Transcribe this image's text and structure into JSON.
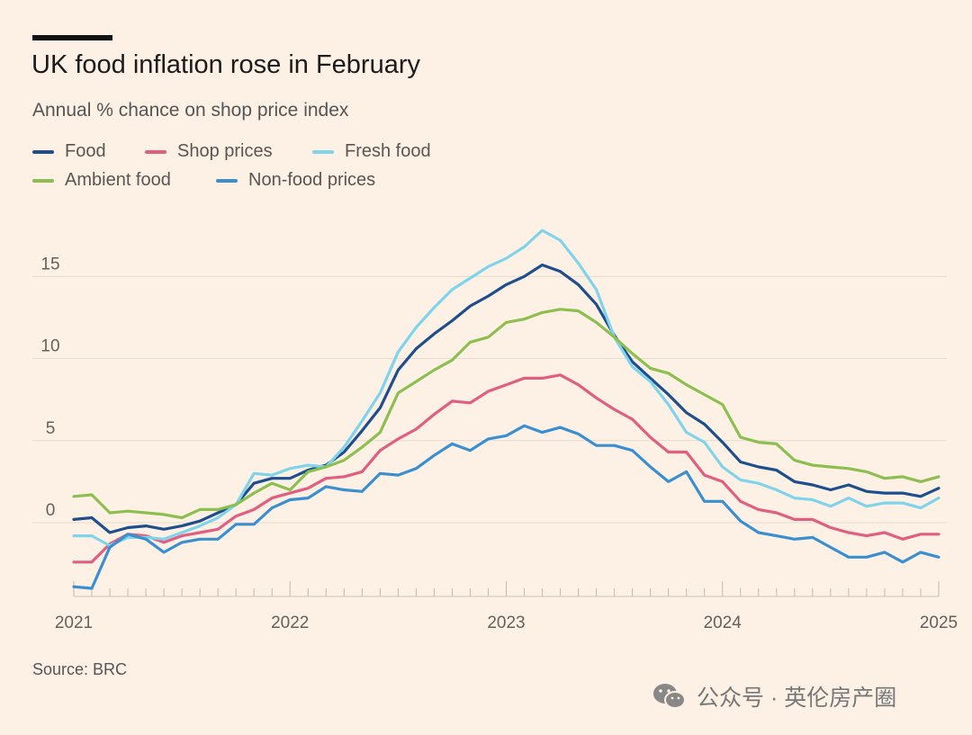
{
  "header": {
    "title": "UK food inflation rose in February",
    "subtitle": "Annual % chance on shop price index"
  },
  "footer": {
    "source": "Source: BRC",
    "watermark": "公众号 · 英伦房产圈"
  },
  "colors": {
    "background": "#fdf1e5",
    "food": "#1f4e8c",
    "shop_prices": "#e05f80",
    "fresh_food": "#7fd4ec",
    "ambient_food": "#8cbf4f",
    "non_food_prices": "#3a8fd0",
    "grid": "#e6dbd0"
  },
  "icons": {
    "watermark_icon": "wechat-icon"
  },
  "chart_data": {
    "type": "line",
    "title": "UK food inflation rose in February",
    "subtitle": "Annual % chance on shop price index",
    "xlabel": "",
    "ylabel": "",
    "x_start": "2021-01",
    "x_frequency": "monthly",
    "x_tick_labels": [
      "2021",
      "2022",
      "2023",
      "2024",
      "2025"
    ],
    "y_ticks": [
      0,
      5,
      10,
      15
    ],
    "ylim": [
      -4.5,
      18
    ],
    "grid": "horizontal",
    "legend_position": "top-left",
    "series": [
      {
        "key": "food",
        "name": "Food",
        "color": "#1f4e8c",
        "values": [
          0.2,
          0.3,
          -0.6,
          -0.3,
          -0.2,
          -0.4,
          -0.2,
          0.1,
          0.6,
          1.1,
          2.4,
          2.7,
          2.7,
          3.2,
          3.5,
          4.3,
          5.6,
          7.0,
          9.3,
          10.6,
          11.5,
          12.3,
          13.2,
          13.8,
          14.5,
          15.0,
          15.7,
          15.3,
          14.5,
          13.3,
          11.4,
          9.8,
          8.8,
          7.8,
          6.7,
          6.0,
          4.9,
          3.7,
          3.4,
          3.2,
          2.5,
          2.3,
          2.0,
          2.3,
          1.9,
          1.8,
          1.8,
          1.6,
          2.1
        ]
      },
      {
        "key": "shop_prices",
        "name": "Shop prices",
        "color": "#e05f80",
        "values": [
          -2.4,
          -2.4,
          -1.3,
          -0.7,
          -0.8,
          -1.2,
          -0.8,
          -0.6,
          -0.4,
          0.4,
          0.8,
          1.5,
          1.8,
          2.1,
          2.7,
          2.8,
          3.1,
          4.4,
          5.1,
          5.7,
          6.6,
          7.4,
          7.3,
          8.0,
          8.4,
          8.8,
          8.8,
          9.0,
          8.4,
          7.6,
          6.9,
          6.3,
          5.2,
          4.3,
          4.3,
          2.9,
          2.5,
          1.3,
          0.8,
          0.6,
          0.2,
          0.2,
          -0.3,
          -0.6,
          -0.8,
          -0.6,
          -1.0,
          -0.7,
          -0.7
        ]
      },
      {
        "key": "fresh_food",
        "name": "Fresh food",
        "color": "#7fd4ec",
        "values": [
          -0.8,
          -0.8,
          -1.4,
          -0.9,
          -0.9,
          -1.0,
          -0.6,
          -0.2,
          0.3,
          1.1,
          3.0,
          2.9,
          3.3,
          3.5,
          3.4,
          4.6,
          6.2,
          7.9,
          10.4,
          11.9,
          13.1,
          14.2,
          14.9,
          15.6,
          16.1,
          16.8,
          17.8,
          17.2,
          15.8,
          14.2,
          11.3,
          9.5,
          8.6,
          7.2,
          5.5,
          4.9,
          3.4,
          2.6,
          2.4,
          2.0,
          1.5,
          1.4,
          1.0,
          1.5,
          1.0,
          1.2,
          1.2,
          0.9,
          1.5
        ]
      },
      {
        "key": "ambient_food",
        "name": "Ambient food",
        "color": "#8cbf4f",
        "values": [
          1.6,
          1.7,
          0.6,
          0.7,
          0.6,
          0.5,
          0.3,
          0.8,
          0.8,
          1.1,
          1.8,
          2.4,
          2.0,
          3.1,
          3.4,
          3.8,
          4.6,
          5.5,
          7.9,
          8.6,
          9.3,
          9.9,
          11.0,
          11.3,
          12.2,
          12.4,
          12.8,
          13.0,
          12.9,
          12.2,
          11.3,
          10.3,
          9.4,
          9.1,
          8.4,
          7.8,
          7.2,
          5.2,
          4.9,
          4.8,
          3.8,
          3.5,
          3.4,
          3.3,
          3.1,
          2.7,
          2.8,
          2.5,
          2.8
        ]
      },
      {
        "key": "non_food_prices",
        "name": "Non-food prices",
        "color": "#3a8fd0",
        "values": [
          -3.9,
          -4.0,
          -1.5,
          -0.7,
          -1.0,
          -1.8,
          -1.2,
          -1.0,
          -1.0,
          -0.1,
          -0.1,
          0.9,
          1.4,
          1.5,
          2.2,
          2.0,
          1.9,
          3.0,
          2.9,
          3.3,
          4.1,
          4.8,
          4.4,
          5.1,
          5.3,
          5.9,
          5.5,
          5.8,
          5.4,
          4.7,
          4.7,
          4.4,
          3.4,
          2.5,
          3.1,
          1.3,
          1.3,
          0.1,
          -0.6,
          -0.8,
          -1.0,
          -0.9,
          -1.5,
          -2.1,
          -2.1,
          -1.8,
          -2.4,
          -1.8,
          -2.1
        ]
      }
    ]
  }
}
